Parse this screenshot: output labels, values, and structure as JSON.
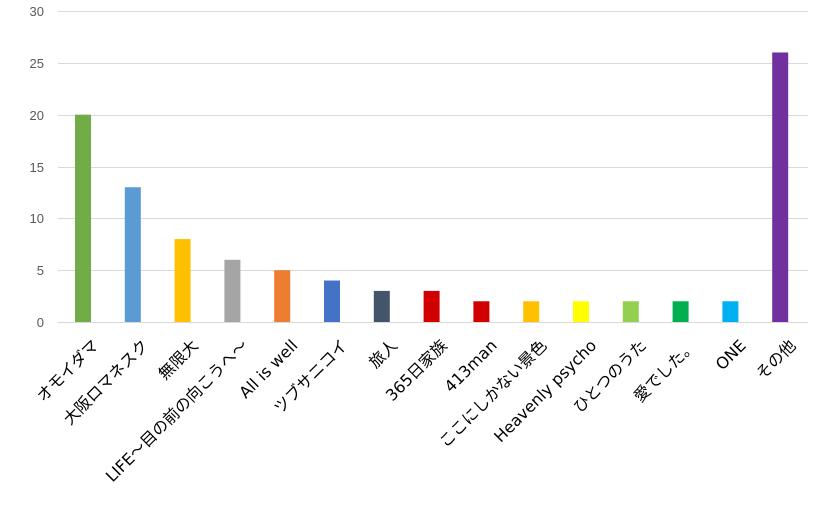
{
  "chart_data": {
    "type": "bar",
    "title": "",
    "xlabel": "",
    "ylabel": "",
    "ylim": [
      0,
      30
    ],
    "yticks": [
      0,
      5,
      10,
      15,
      20,
      25,
      30
    ],
    "grid": true,
    "legend": "none",
    "categories": [
      "オモイダマ",
      "大阪ロマネスク",
      "無限大",
      "LIFE〜目の前の向こうへ〜",
      "All is well",
      "ツブサニコイ",
      "旅人",
      "365日家族",
      "413man",
      "ここにしかない景色",
      "Heavenly psycho",
      "ひとつのうた",
      "愛でした。",
      "ONE",
      "その他"
    ],
    "values": [
      20,
      13,
      8,
      6,
      5,
      4,
      3,
      3,
      2,
      2,
      2,
      2,
      2,
      2,
      26
    ],
    "colors": [
      "#70ad47",
      "#5b9bd5",
      "#ffc000",
      "#a5a5a5",
      "#ed7d31",
      "#4472c4",
      "#44546a",
      "#d00000",
      "#d00000",
      "#ffc000",
      "#ffff00",
      "#92d050",
      "#00b050",
      "#00b0f0",
      "#7030a0"
    ]
  }
}
